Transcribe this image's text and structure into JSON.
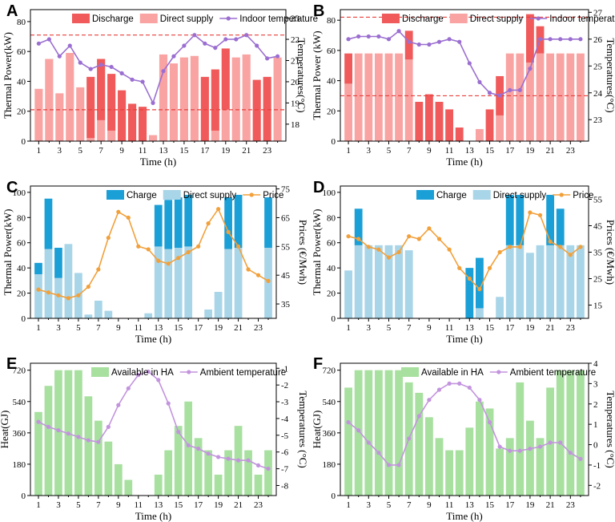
{
  "colors": {
    "discharge": "#f05a5a",
    "direct_supply_red": "#f9a3a3",
    "indoor_temp": "#9b6fd1",
    "charge": "#1a9fd6",
    "direct_supply_blue": "#a9d5e8",
    "price": "#f2a03a",
    "available_ha": "#a8e0a0",
    "ambient_temp": "#c394de",
    "ref_line": "#e8413c"
  },
  "chart_data": [
    {
      "id": "A",
      "type": "bar",
      "letter": "A",
      "xlabel": "Time (h)",
      "ylabel": "Thermal Power(kW)",
      "y2label": "Temperatures(°C)",
      "legend": [
        "Discharge",
        "Direct supply",
        "Indoor temperature"
      ],
      "x": [
        1,
        2,
        3,
        4,
        5,
        6,
        7,
        8,
        9,
        10,
        11,
        12,
        13,
        14,
        15,
        16,
        17,
        18,
        19,
        20,
        21,
        22,
        23,
        24
      ],
      "xticks": [
        "1",
        "3",
        "5",
        "7",
        "9",
        "11",
        "13",
        "15",
        "17",
        "19",
        "21",
        "23"
      ],
      "ylim": [
        0,
        88
      ],
      "yticks": [
        "0",
        "20",
        "40",
        "60",
        "80"
      ],
      "y2lim": [
        17.2,
        23.4
      ],
      "y2ticks": [
        "18",
        "19",
        "20",
        "21",
        "22",
        "23"
      ],
      "series": [
        {
          "name": "Direct supply",
          "values": [
            35,
            55,
            32,
            59,
            36,
            2,
            14,
            7,
            0,
            0,
            0,
            4,
            58,
            52,
            56,
            57,
            0,
            7,
            21,
            56,
            58,
            0,
            0,
            56
          ]
        },
        {
          "name": "Discharge",
          "values": [
            0,
            0,
            0,
            0,
            0,
            41,
            41,
            38,
            34,
            25,
            23,
            0,
            0,
            0,
            0,
            0,
            43,
            41,
            41,
            0,
            0,
            41,
            43,
            0
          ]
        },
        {
          "name": "Indoor temperature",
          "axis": "right",
          "values": [
            21.8,
            22.0,
            21.2,
            21.7,
            20.9,
            20.6,
            20.8,
            20.7,
            20.4,
            20.1,
            20.0,
            19.0,
            20.5,
            21.2,
            21.7,
            22.2,
            21.8,
            21.6,
            22.0,
            22.0,
            22.2,
            21.7,
            21.1,
            21.2
          ]
        }
      ],
      "hlines_left": [
        71,
        21
      ]
    },
    {
      "id": "B",
      "type": "bar",
      "letter": "B",
      "xlabel": "Time (h)",
      "ylabel": "Thermal Power (kW)",
      "y2label": "Temperatures(°C)",
      "legend": [
        "Discharge",
        "Direct supply",
        "Indoor temperature"
      ],
      "x": [
        1,
        2,
        3,
        4,
        5,
        6,
        7,
        8,
        9,
        10,
        11,
        12,
        13,
        14,
        15,
        16,
        17,
        18,
        19,
        20,
        21,
        22,
        23,
        24
      ],
      "xticks": [
        "1",
        "3",
        "5",
        "7",
        "9",
        "11",
        "13",
        "15",
        "17",
        "19",
        "21",
        "23"
      ],
      "ylim": [
        0,
        87
      ],
      "yticks": [
        "0",
        "20",
        "40",
        "60",
        "80"
      ],
      "y2lim": [
        22.2,
        27.1
      ],
      "y2ticks": [
        "23",
        "24",
        "25",
        "26",
        "27"
      ],
      "series": [
        {
          "name": "Direct supply",
          "values": [
            38,
            58,
            58,
            58,
            58,
            58,
            54,
            0,
            0,
            0,
            0,
            0,
            0,
            8,
            0,
            17,
            58,
            58,
            52,
            58,
            58,
            58,
            58,
            58
          ]
        },
        {
          "name": "Discharge",
          "values": [
            20,
            0,
            0,
            0,
            0,
            0,
            19,
            26,
            31,
            26,
            21,
            9,
            0,
            0,
            21,
            26,
            0,
            0,
            32,
            18,
            0,
            0,
            0,
            0
          ]
        },
        {
          "name": "Indoor temperature",
          "axis": "right",
          "values": [
            26.0,
            26.1,
            26.1,
            26.1,
            26.0,
            26.3,
            25.9,
            25.8,
            25.8,
            25.9,
            26.0,
            25.9,
            25.1,
            24.4,
            24.0,
            23.9,
            24.1,
            24.1,
            24.9,
            26.0,
            26.0,
            26.0,
            26.0,
            26.0
          ]
        }
      ],
      "hlines_left": [
        82,
        30
      ]
    },
    {
      "id": "C",
      "type": "bar",
      "letter": "C",
      "xlabel": "Time (h)",
      "ylabel": "Thermal Power(kW)",
      "y2label": "Prices (€/Mwh)",
      "legend": [
        "Charge",
        "Direct supply",
        "Price"
      ],
      "x": [
        1,
        2,
        3,
        4,
        5,
        6,
        7,
        8,
        9,
        10,
        11,
        12,
        13,
        14,
        15,
        16,
        17,
        18,
        19,
        20,
        21,
        22,
        23,
        24
      ],
      "xticks": [
        "1",
        "3",
        "5",
        "7",
        "9",
        "11",
        "13",
        "15",
        "17",
        "19",
        "21",
        "23"
      ],
      "ylim": [
        0,
        105
      ],
      "yticks": [
        "0",
        "20",
        "40",
        "60",
        "80",
        "100"
      ],
      "y2lim": [
        30,
        76
      ],
      "y2ticks": [
        "35",
        "45",
        "55",
        "65",
        "75"
      ],
      "series": [
        {
          "name": "Direct supply",
          "values": [
            35,
            55,
            32,
            59,
            36,
            3,
            14,
            6,
            0,
            0,
            0,
            4,
            57,
            55,
            56,
            57,
            0,
            7,
            21,
            55,
            56,
            0,
            0,
            56
          ]
        },
        {
          "name": "Charge",
          "values": [
            9,
            40,
            24,
            0,
            0,
            0,
            0,
            0,
            0,
            0,
            0,
            0,
            33,
            39,
            40,
            41,
            0,
            0,
            0,
            41,
            42,
            0,
            0,
            40
          ]
        },
        {
          "name": "Price",
          "axis": "right",
          "values": [
            40,
            39,
            38,
            37,
            38,
            41,
            47,
            58,
            67,
            65,
            55,
            54,
            50,
            49,
            51,
            53,
            55,
            63,
            68,
            60,
            55,
            47,
            45,
            43
          ]
        }
      ]
    },
    {
      "id": "D",
      "type": "bar",
      "letter": "D",
      "xlabel": "Time (h)",
      "ylabel": "Thermal Power(kW)",
      "y2label": "Prices (€/Mwh)",
      "legend": [
        "Charge",
        "Direct supply",
        "Price"
      ],
      "x": [
        1,
        2,
        3,
        4,
        5,
        6,
        7,
        8,
        9,
        10,
        11,
        12,
        13,
        14,
        15,
        16,
        17,
        18,
        19,
        20,
        21,
        22,
        23,
        24
      ],
      "xticks": [
        "1",
        "3",
        "5",
        "7",
        "9",
        "11",
        "13",
        "15",
        "17",
        "19",
        "21",
        "23"
      ],
      "ylim": [
        0,
        105
      ],
      "yticks": [
        "0",
        "20",
        "40",
        "60",
        "80",
        "100"
      ],
      "y2lim": [
        10,
        60
      ],
      "y2ticks": [
        "15",
        "25",
        "35",
        "45",
        "55"
      ],
      "series": [
        {
          "name": "Direct supply",
          "values": [
            38,
            58,
            58,
            58,
            58,
            58,
            54,
            0,
            0,
            0,
            0,
            0,
            0,
            8,
            0,
            17,
            58,
            58,
            52,
            58,
            58,
            58,
            58,
            58
          ]
        },
        {
          "name": "Charge",
          "values": [
            0,
            29,
            0,
            0,
            0,
            0,
            0,
            0,
            0,
            0,
            0,
            0,
            40,
            40,
            0,
            0,
            40,
            40,
            0,
            0,
            40,
            29,
            0,
            0
          ]
        },
        {
          "name": "Price",
          "axis": "right",
          "values": [
            41,
            40,
            37,
            36,
            33,
            35,
            41,
            40,
            44,
            40,
            36,
            29,
            25,
            21,
            29,
            35,
            37,
            37,
            50,
            49,
            39,
            37,
            34,
            37
          ]
        }
      ]
    },
    {
      "id": "E",
      "type": "bar",
      "letter": "E",
      "xlabel": "Time (h)",
      "ylabel": "Heat(GJ)",
      "y2label": "Temperatures (°C)",
      "legend": [
        "Available in HA",
        "Ambient temperature"
      ],
      "x": [
        1,
        2,
        3,
        4,
        5,
        6,
        7,
        8,
        9,
        10,
        11,
        12,
        13,
        14,
        15,
        16,
        17,
        18,
        19,
        20,
        21,
        22,
        23,
        24
      ],
      "xticks": [
        "1",
        "3",
        "5",
        "7",
        "9",
        "11",
        "13",
        "15",
        "17",
        "19",
        "21",
        "23"
      ],
      "ylim": [
        0,
        760
      ],
      "yticks": [
        "0",
        "180",
        "360",
        "540",
        "720"
      ],
      "y2lim": [
        -8.6,
        -0.7
      ],
      "y2ticks": [
        "-8",
        "-7",
        "-6",
        "-5",
        "-4",
        "-3",
        "-2",
        "-1"
      ],
      "series": [
        {
          "name": "Available in HA",
          "values": [
            480,
            630,
            720,
            720,
            720,
            570,
            430,
            310,
            180,
            90,
            0,
            0,
            120,
            260,
            400,
            540,
            330,
            260,
            120,
            260,
            400,
            260,
            120,
            260
          ]
        },
        {
          "name": "Ambient temperature",
          "axis": "right",
          "values": [
            -4.2,
            -4.5,
            -4.7,
            -4.9,
            -5.1,
            -5.3,
            -5.4,
            -4.5,
            -3.2,
            -2.2,
            -1.4,
            -1.2,
            -1.7,
            -3.1,
            -4.8,
            -5.6,
            -5.8,
            -6.1,
            -6.3,
            -6.4,
            -6.5,
            -6.5,
            -6.8,
            -7.0
          ]
        }
      ]
    },
    {
      "id": "F",
      "type": "bar",
      "letter": "F",
      "xlabel": "Time (h)",
      "ylabel": "Heat(GJ)",
      "y2label": "Temperatures (°C)",
      "legend": [
        "Available in HA",
        "Ambient temperature"
      ],
      "x": [
        1,
        2,
        3,
        4,
        5,
        6,
        7,
        8,
        9,
        10,
        11,
        12,
        13,
        14,
        15,
        16,
        17,
        18,
        19,
        20,
        21,
        22,
        23,
        24
      ],
      "xticks": [
        "1",
        "3",
        "5",
        "7",
        "9",
        "11",
        "13",
        "15",
        "17",
        "19",
        "21",
        "23"
      ],
      "ylim": [
        0,
        760
      ],
      "yticks": [
        "0",
        "180",
        "360",
        "540",
        "720"
      ],
      "y2lim": [
        -2.5,
        4
      ],
      "y2ticks": [
        "-2",
        "-1",
        "0",
        "1",
        "2",
        "3",
        "4"
      ],
      "series": [
        {
          "name": "Available in HA",
          "values": [
            620,
            720,
            720,
            720,
            720,
            720,
            650,
            590,
            450,
            330,
            260,
            260,
            390,
            540,
            500,
            270,
            330,
            650,
            430,
            330,
            620,
            720,
            720,
            720
          ]
        },
        {
          "name": "Ambient temperature",
          "axis": "right",
          "values": [
            1.1,
            0.7,
            0.1,
            -0.4,
            -1.0,
            -1.0,
            0.3,
            1.4,
            2.2,
            2.7,
            3.0,
            3.0,
            2.8,
            2.2,
            1.1,
            -0.1,
            -0.3,
            -0.3,
            -0.2,
            -0.1,
            0.1,
            0.1,
            -0.4,
            -0.7
          ]
        }
      ]
    }
  ]
}
